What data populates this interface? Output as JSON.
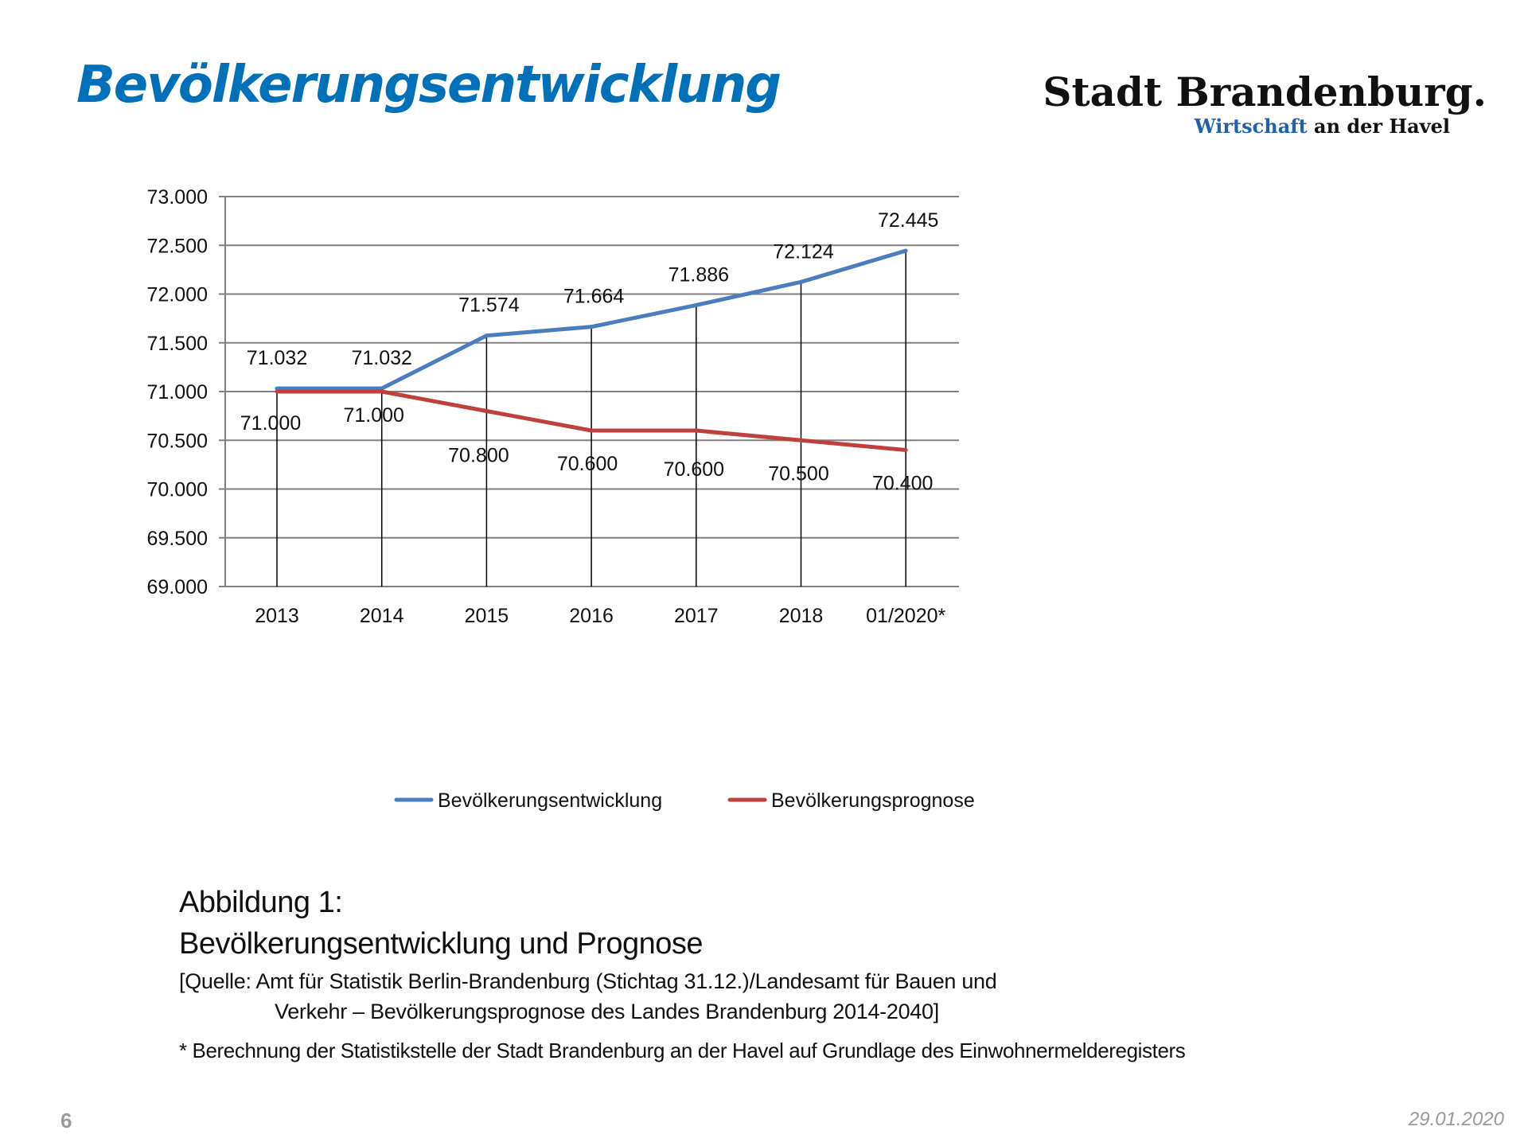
{
  "header": {
    "title": "Bevölkerungsentwicklung",
    "logo_main": "Stadt Brandenburg.",
    "logo_sub_blue": "Wirtschaft",
    "logo_sub_rest": " an der Havel"
  },
  "chart_data": {
    "type": "line",
    "title": "",
    "xlabel": "",
    "ylabel": "",
    "categories": [
      "2013",
      "2014",
      "2015",
      "2016",
      "2017",
      "2018",
      "01/2020*"
    ],
    "ylim": [
      69000,
      73000
    ],
    "yticks": [
      69000,
      69500,
      70000,
      70500,
      71000,
      71500,
      72000,
      72500,
      73000
    ],
    "ytick_labels": [
      "69.000",
      "69.500",
      "70.000",
      "70.500",
      "71.000",
      "71.500",
      "72.000",
      "72.500",
      "73.000"
    ],
    "grid": true,
    "legend_position": "bottom",
    "series": [
      {
        "name": "Bevölkerungsentwicklung",
        "color": "#4a7ebf",
        "values": [
          71032,
          71032,
          71574,
          71664,
          71886,
          72124,
          72445
        ],
        "labels": [
          "71.032",
          "71.032",
          "71.574",
          "71.664",
          "71.886",
          "72.124",
          "72.445"
        ]
      },
      {
        "name": "Bevölkerungsprognose",
        "color": "#c0403d",
        "values": [
          71000,
          71000,
          70800,
          70600,
          70600,
          70500,
          70400
        ],
        "labels": [
          "71.000",
          "71.000",
          "70.800",
          "70.600",
          "70.600",
          "70.500",
          "70.400"
        ]
      }
    ]
  },
  "caption": {
    "line1": "Abbildung 1:",
    "line2": "Bevölkerungsentwicklung und Prognose",
    "line3": "[Quelle: Amt für Statistik Berlin-Brandenburg (Stichtag 31.12.)/Landesamt für Bauen und",
    "line4": "Verkehr – Bevölkerungsprognose des Landes Brandenburg 2014-2040]",
    "note": "* Berechnung der Statistikstelle der Stadt Brandenburg an der Havel auf Grundlage des Einwohnermelderegisters"
  },
  "footer": {
    "page_number": "6",
    "date": "29.01.2020"
  }
}
